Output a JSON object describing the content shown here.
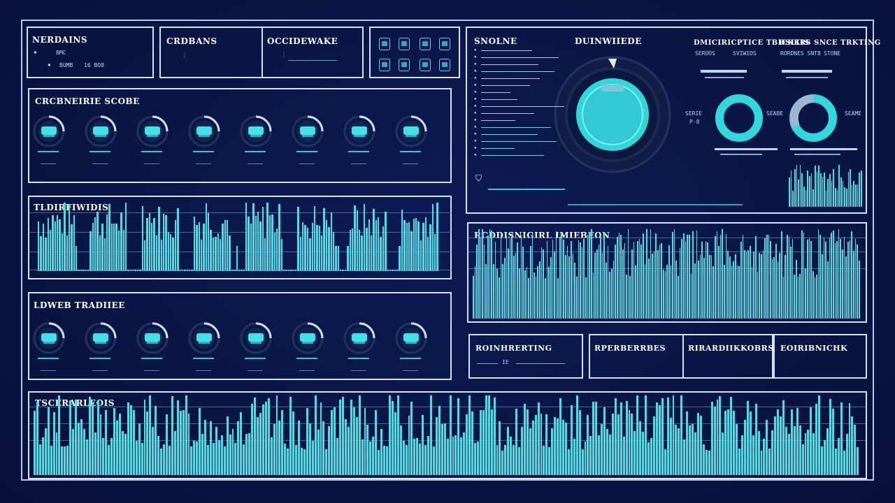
{
  "colors": {
    "background": "#0a1646",
    "accent": "#3fe2e8",
    "panel_border": "#d6e2f6"
  },
  "header": {
    "panel1": {
      "title": "NERDAINS",
      "row1": "BMC",
      "row2": "BUMB",
      "row3": "16 BO8"
    },
    "panel2": {
      "title": "CRDBANS"
    },
    "panel3": {
      "title": "OCCIDEWAKE"
    },
    "toolbar_icons": [
      "app-icon-1",
      "app-icon-2",
      "app-icon-3",
      "app-icon-4",
      "app-icon-5",
      "app-icon-6",
      "app-icon-7",
      "app-icon-8"
    ]
  },
  "status_panel": {
    "title": "CRCBNEIRIE SCOBE",
    "gauges": [
      "storage-gauge",
      "cloud-gauge",
      "cloud-gauge",
      "cloud-gauge",
      "settings-gauge",
      "cloud-gauge",
      "cloud-gauge",
      "cloud-gauge"
    ]
  },
  "trend_panel": {
    "title": "TLDIRFIWIDIS"
  },
  "stats_panel": {
    "title": "LDWEB TRADIIEE"
  },
  "bottom_panel": {
    "title": "TSCERARLEOIS"
  },
  "monitor_panel": {
    "left_title": "SNOLNE",
    "center_title": "DUINWIIEDE",
    "right_title_1": "DMICIRICPTICE TBICKKIS",
    "right_title_2": "DSLIRS SNCE TRKTING",
    "right_sub_1": "SEROOS",
    "right_sub_2": "SVIWIDS",
    "right_sub_3": "RORDNES SNTB",
    "right_sub_4": "STONE",
    "donut1_left": "SERIE",
    "donut1_left_2": "P-8",
    "donut1_right": "SEABE",
    "donut2_right": "SEAME"
  },
  "wave_panel": {
    "title": "RCDDISNIGIRL IMIEBEON"
  },
  "info_panels": [
    {
      "title": "ROINHRERTING",
      "value": "IE"
    },
    {
      "title": "RPERBERRBES"
    },
    {
      "title": "RIRARDIIKKOBRS"
    },
    {
      "title": "EOIRIBNICHK"
    }
  ]
}
